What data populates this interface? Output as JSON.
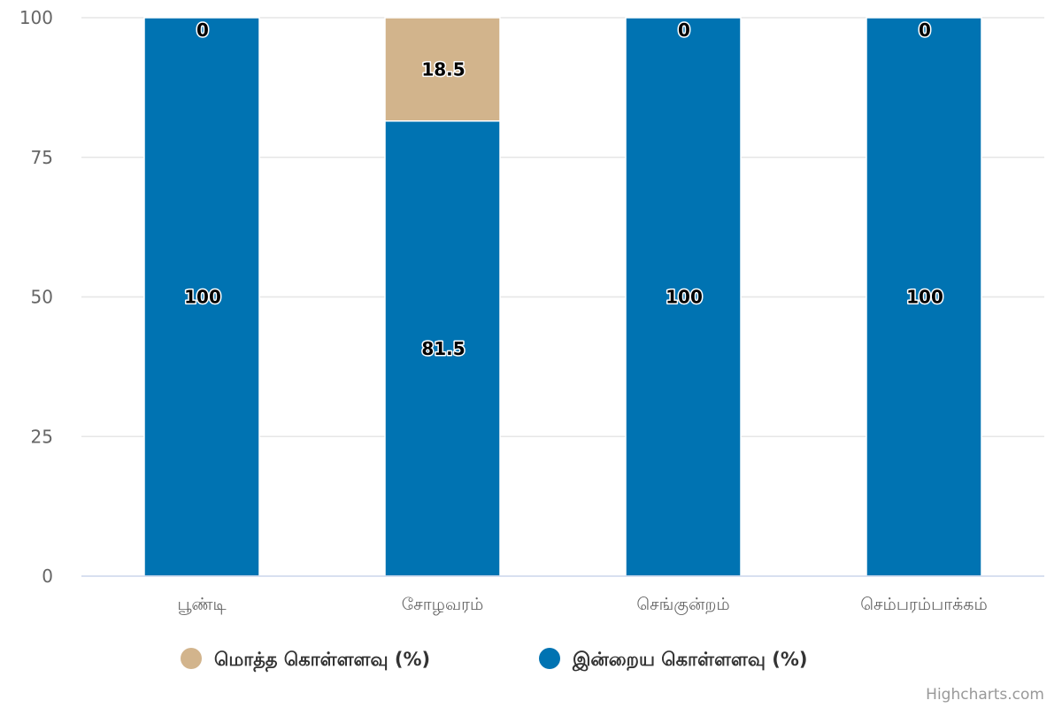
{
  "chart_data": {
    "type": "bar",
    "stacked": true,
    "categories": [
      "பூண்டி",
      "சோழவரம்",
      "செங்குன்றம்",
      "செம்பரம்பாக்கம்"
    ],
    "series": [
      {
        "name": "மொத்த கொள்ளளவு (%)",
        "color": "#d2b48c",
        "values": [
          0,
          18.5,
          0,
          0
        ]
      },
      {
        "name": "இன்றைய கொள்ளளவு (%)",
        "color": "#0073b2",
        "values": [
          100,
          81.5,
          100,
          100
        ]
      }
    ],
    "yticks": [
      "0",
      "25",
      "50",
      "75",
      "100"
    ],
    "ylim": [
      0,
      100
    ],
    "grid": true,
    "legend_position": "bottom-center",
    "title": "",
    "xlabel": "",
    "ylabel": ""
  },
  "credits": "Highcharts.com"
}
